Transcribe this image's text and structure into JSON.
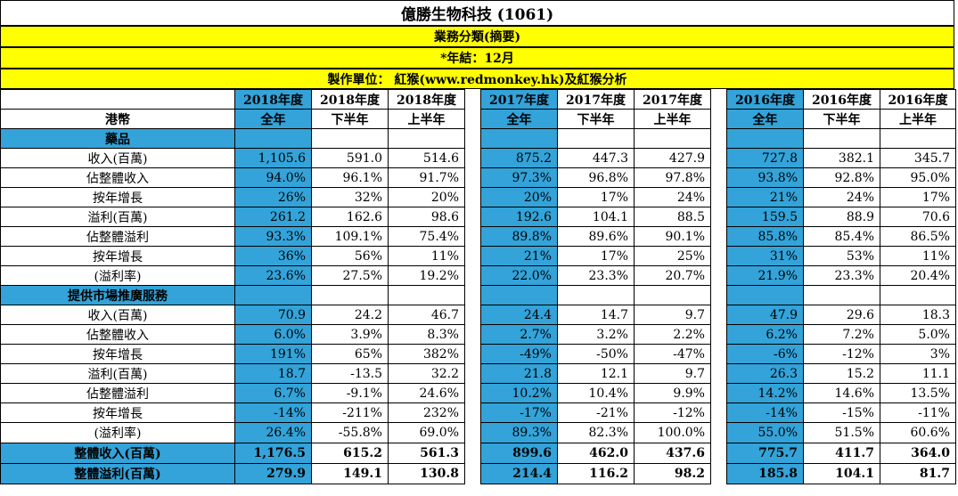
{
  "title": "億勝生物科技 (1061)",
  "banners": [
    "業務分類(摘要)",
    "*年結：12月",
    "製作單位： 紅猴(www.redmonkey.hk)及紅猴分析"
  ],
  "header_years": [
    "2018年度",
    "2018年度",
    "2018年度",
    "2017年度",
    "2017年度",
    "2017年度",
    "2016年度",
    "2016年度",
    "2016年度"
  ],
  "header_currency": "港幣",
  "header_periods": [
    "全年",
    "下半年",
    "上半年",
    "全年",
    "下半年",
    "上半年",
    "全年",
    "下半年",
    "上半年"
  ],
  "rows": [
    {
      "label": "藥品",
      "type": "section",
      "values": [
        "",
        "",
        "",
        "",
        "",
        "",
        "",
        "",
        ""
      ]
    },
    {
      "label": "收入(百萬)",
      "values": [
        "1,105.6",
        "591.0",
        "514.6",
        "875.2",
        "447.3",
        "427.9",
        "727.8",
        "382.1",
        "345.7"
      ]
    },
    {
      "label": "佔整體收入",
      "values": [
        "94.0%",
        "96.1%",
        "91.7%",
        "97.3%",
        "96.8%",
        "97.8%",
        "93.8%",
        "92.8%",
        "95.0%"
      ]
    },
    {
      "label": "按年增長",
      "values": [
        "26%",
        "32%",
        "20%",
        "20%",
        "17%",
        "24%",
        "21%",
        "24%",
        "17%"
      ]
    },
    {
      "label": "溢利(百萬)",
      "values": [
        "261.2",
        "162.6",
        "98.6",
        "192.6",
        "104.1",
        "88.5",
        "159.5",
        "88.9",
        "70.6"
      ]
    },
    {
      "label": "佔整體溢利",
      "values": [
        "93.3%",
        "109.1%",
        "75.4%",
        "89.8%",
        "89.6%",
        "90.1%",
        "85.8%",
        "85.4%",
        "86.5%"
      ]
    },
    {
      "label": "按年增長",
      "values": [
        "36%",
        "56%",
        "11%",
        "21%",
        "17%",
        "25%",
        "31%",
        "53%",
        "11%"
      ]
    },
    {
      "label": "(溢利率)",
      "values": [
        "23.6%",
        "27.5%",
        "19.2%",
        "22.0%",
        "23.3%",
        "20.7%",
        "21.9%",
        "23.3%",
        "20.4%"
      ]
    },
    {
      "label": "提供市場推廣服務",
      "type": "section",
      "values": [
        "",
        "",
        "",
        "",
        "",
        "",
        "",
        "",
        ""
      ]
    },
    {
      "label": "收入(百萬)",
      "values": [
        "70.9",
        "24.2",
        "46.7",
        "24.4",
        "14.7",
        "9.7",
        "47.9",
        "29.6",
        "18.3"
      ]
    },
    {
      "label": "佔整體收入",
      "values": [
        "6.0%",
        "3.9%",
        "8.3%",
        "2.7%",
        "3.2%",
        "2.2%",
        "6.2%",
        "7.2%",
        "5.0%"
      ]
    },
    {
      "label": "按年增長",
      "values": [
        "191%",
        "65%",
        "382%",
        "-49%",
        "-50%",
        "-47%",
        "-6%",
        "-12%",
        "3%"
      ]
    },
    {
      "label": "溢利(百萬)",
      "values": [
        "18.7",
        "-13.5",
        "32.2",
        "21.8",
        "12.1",
        "9.7",
        "26.3",
        "15.2",
        "11.1"
      ]
    },
    {
      "label": "佔整體溢利",
      "values": [
        "6.7%",
        "-9.1%",
        "24.6%",
        "10.2%",
        "10.4%",
        "9.9%",
        "14.2%",
        "14.6%",
        "13.5%"
      ]
    },
    {
      "label": "按年增長",
      "values": [
        "-14%",
        "-211%",
        "232%",
        "-17%",
        "-21%",
        "-12%",
        "-14%",
        "-15%",
        "-11%"
      ]
    },
    {
      "label": "(溢利率)",
      "values": [
        "26.4%",
        "-55.8%",
        "69.0%",
        "89.3%",
        "82.3%",
        "100.0%",
        "55.0%",
        "51.5%",
        "60.6%"
      ]
    },
    {
      "label": "整體收入(百萬)",
      "type": "total",
      "values": [
        "1,176.5",
        "615.2",
        "561.3",
        "899.6",
        "462.0",
        "437.6",
        "775.7",
        "411.7",
        "364.0"
      ]
    },
    {
      "label": "整體溢利(百萬)",
      "type": "total",
      "values": [
        "279.9",
        "149.1",
        "130.8",
        "214.4",
        "116.2",
        "98.2",
        "185.8",
        "104.1",
        "81.7"
      ]
    }
  ]
}
